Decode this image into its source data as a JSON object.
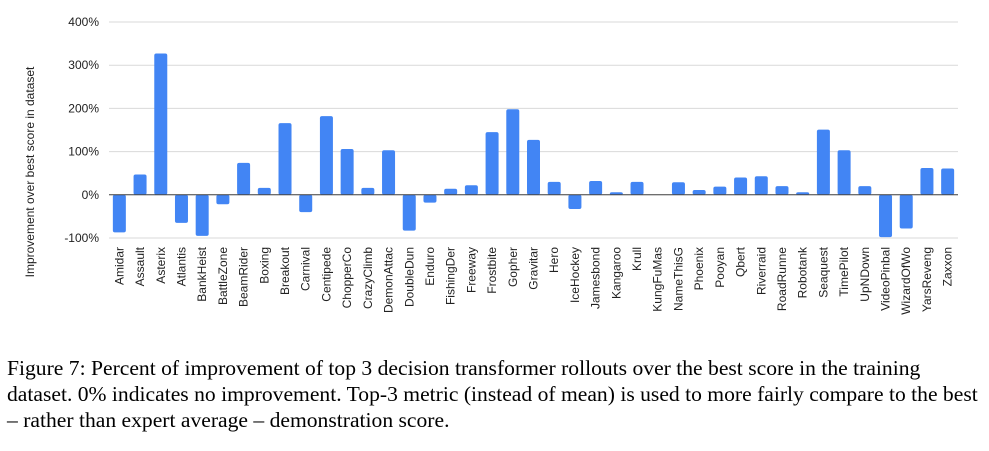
{
  "chart_data": {
    "type": "bar",
    "ylabel": "Improvement over best score in dataset",
    "ylim": [
      -100,
      400
    ],
    "yticks": [
      -100,
      0,
      100,
      200,
      300,
      400
    ],
    "ytick_labels": [
      "-100%",
      "0%",
      "100%",
      "200%",
      "300%",
      "400%"
    ],
    "grid": true,
    "bar_color": "#4285f4",
    "categories": [
      "Amidar",
      "Assault",
      "Asterix",
      "Atlantis",
      "BankHeist",
      "BattleZone",
      "BeamRider",
      "Boxing",
      "Breakout",
      "Carnival",
      "Centipede",
      "ChopperCo",
      "CrazyClimb",
      "DemonAttac",
      "DoubleDun",
      "Enduro",
      "FishingDer",
      "Freeway",
      "Frostbite",
      "Gopher",
      "Gravitar",
      "Hero",
      "IceHockey",
      "Jamesbond",
      "Kangaroo",
      "Krull",
      "KungFuMas",
      "NameThisG",
      "Phoenix",
      "Pooyan",
      "Qbert",
      "Riverraid",
      "RoadRunne",
      "Robotank",
      "Seaquest",
      "TimePilot",
      "UpNDown",
      "VideoPinbal",
      "WizardOfWo",
      "YarsReveng",
      "Zaxxon"
    ],
    "values": [
      -87,
      47,
      327,
      -65,
      -95,
      -22,
      74,
      16,
      166,
      -40,
      182,
      106,
      16,
      103,
      -83,
      -18,
      14,
      22,
      145,
      198,
      127,
      30,
      -33,
      32,
      6,
      30,
      0,
      29,
      11,
      19,
      40,
      43,
      20,
      6,
      151,
      103,
      20,
      -98,
      -78,
      62,
      61
    ]
  },
  "caption": "Figure 7: Percent of improvement of top 3 decision transformer rollouts over the best score in the training dataset. 0% indicates no improvement. Top-3 metric (instead of mean) is used to more fairly compare to the best – rather than expert average – demonstration score."
}
